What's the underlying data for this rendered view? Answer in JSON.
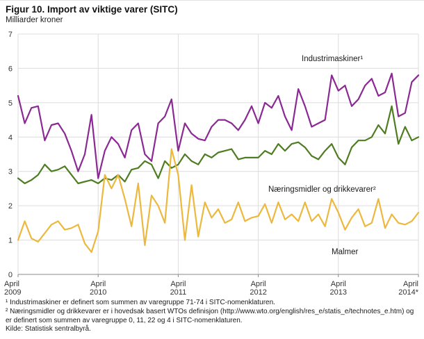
{
  "header": {
    "title": "Figur 10.  Import av viktige varer (SITC)",
    "subtitle": "Milliarder kroner"
  },
  "footnotes": [
    "¹ Industrimaskiner er definert som summen av varegruppe 71-74 i SITC-nomenklaturen.",
    "² Næringsmidler og drikkevarer er i hovedsak basert WTOs definisjon (http://www.wto.org/english/res_e/statis_e/technotes_e.htm) og er definert som summen av varegruppe 0, 11, 22 og 4 i SITC-nomenklaturen.",
    "Kilde: Statistisk sentralbyrå."
  ],
  "chart_data": {
    "type": "line",
    "title": "Figur 10. Import av viktige varer (SITC)",
    "ylabel": "Milliarder kroner",
    "ylim": [
      0,
      7
    ],
    "yticks": [
      0,
      1,
      2,
      3,
      4,
      5,
      6,
      7
    ],
    "grid": true,
    "x_unit": "month",
    "x_range": "April 2009 – April 2014",
    "x_ticks": [
      {
        "month": "April",
        "year": "2009"
      },
      {
        "month": "April",
        "year": "2010"
      },
      {
        "month": "April",
        "year": "2011"
      },
      {
        "month": "April",
        "year": "2012"
      },
      {
        "month": "April",
        "year": "2013"
      },
      {
        "month": "April",
        "year": "2014*"
      }
    ],
    "series": [
      {
        "name": "Industrimaskiner¹",
        "color": "#8b2994",
        "values": [
          5.2,
          4.4,
          4.85,
          4.9,
          3.9,
          4.35,
          4.4,
          4.1,
          3.6,
          3.0,
          3.5,
          4.65,
          2.8,
          3.6,
          4.0,
          3.8,
          3.4,
          4.2,
          4.4,
          3.5,
          3.3,
          4.4,
          4.6,
          5.1,
          3.6,
          4.4,
          4.1,
          3.95,
          3.9,
          4.3,
          4.5,
          4.5,
          4.4,
          4.2,
          4.5,
          4.9,
          4.4,
          5.0,
          4.85,
          5.2,
          4.6,
          4.2,
          5.4,
          4.9,
          4.3,
          4.4,
          4.5,
          5.8,
          5.35,
          5.5,
          4.9,
          5.1,
          5.5,
          5.7,
          5.2,
          5.3,
          5.85,
          4.6,
          4.7,
          5.6,
          5.8
        ]
      },
      {
        "name": "Næringsmidler og drikkevarer²",
        "color": "#4e7d21",
        "values": [
          2.8,
          2.65,
          2.75,
          2.9,
          3.2,
          3.0,
          3.05,
          3.15,
          2.9,
          2.65,
          2.7,
          2.75,
          2.65,
          2.8,
          2.75,
          2.9,
          2.7,
          3.05,
          3.1,
          3.3,
          3.2,
          2.8,
          3.3,
          3.1,
          3.2,
          3.5,
          3.3,
          3.2,
          3.5,
          3.4,
          3.55,
          3.6,
          3.65,
          3.35,
          3.4,
          3.4,
          3.4,
          3.6,
          3.5,
          3.8,
          3.6,
          3.8,
          3.85,
          3.7,
          3.45,
          3.35,
          3.6,
          3.8,
          3.4,
          3.2,
          3.7,
          3.9,
          3.9,
          4.0,
          4.35,
          4.1,
          4.9,
          3.8,
          4.3,
          3.9,
          4.0
        ]
      },
      {
        "name": "Malmer",
        "color": "#ecb83d",
        "values": [
          1.0,
          1.55,
          1.05,
          0.95,
          1.2,
          1.45,
          1.55,
          1.3,
          1.35,
          1.45,
          0.9,
          0.65,
          1.25,
          2.9,
          2.5,
          2.9,
          2.2,
          1.4,
          2.65,
          0.85,
          2.3,
          2.0,
          1.5,
          3.65,
          2.9,
          1.0,
          2.6,
          1.1,
          2.1,
          1.65,
          1.9,
          1.5,
          1.6,
          2.1,
          1.55,
          1.65,
          1.7,
          2.05,
          1.5,
          2.1,
          1.6,
          1.75,
          1.55,
          2.1,
          1.55,
          1.75,
          1.4,
          2.2,
          1.8,
          1.3,
          1.65,
          1.9,
          1.4,
          1.5,
          2.2,
          1.35,
          1.75,
          1.5,
          1.45,
          1.55,
          1.8
        ]
      }
    ],
    "annotations": [
      {
        "text": "Industrimaskiner¹",
        "series": 0
      },
      {
        "text": "Næringsmidler og drikkevarer²",
        "series": 1
      },
      {
        "text": "Malmer",
        "series": 2
      }
    ],
    "legend_position": "inline-annotations"
  }
}
